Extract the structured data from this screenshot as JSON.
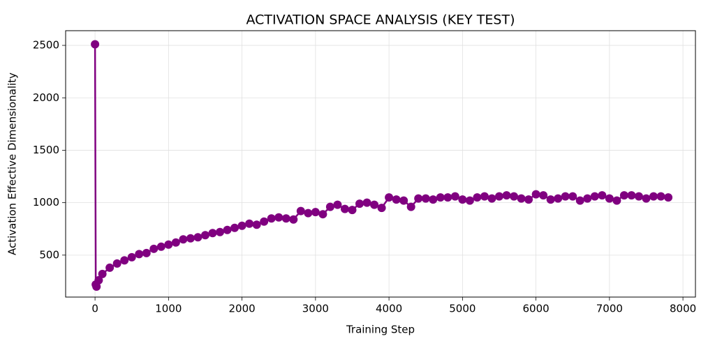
{
  "chart_data": {
    "type": "line",
    "title": "ACTIVATION SPACE ANALYSIS (KEY TEST)",
    "x_label": "Training Step",
    "y_label": "Activation Effective Dimensionality",
    "x": [
      0,
      10,
      20,
      50,
      100,
      200,
      300,
      400,
      500,
      600,
      700,
      800,
      900,
      1000,
      1100,
      1200,
      1300,
      1400,
      1500,
      1600,
      1700,
      1800,
      1900,
      2000,
      2100,
      2200,
      2300,
      2400,
      2500,
      2600,
      2700,
      2800,
      2900,
      3000,
      3100,
      3200,
      3300,
      3400,
      3500,
      3600,
      3700,
      3800,
      3900,
      4000,
      4100,
      4200,
      4300,
      4400,
      4500,
      4600,
      4700,
      4800,
      4900,
      5000,
      5100,
      5200,
      5300,
      5400,
      5500,
      5600,
      5700,
      5800,
      5900,
      6000,
      6100,
      6200,
      6300,
      6400,
      6500,
      6600,
      6700,
      6800,
      6900,
      7000,
      7100,
      7200,
      7300,
      7400,
      7500,
      7600,
      7700,
      7800
    ],
    "series": [
      {
        "name": "Activation Effective Dimensionality",
        "color": "#800080",
        "values": [
          2510,
          220,
          200,
          260,
          320,
          380,
          420,
          450,
          480,
          510,
          520,
          560,
          580,
          600,
          620,
          650,
          660,
          670,
          690,
          710,
          720,
          740,
          760,
          780,
          800,
          790,
          820,
          850,
          860,
          850,
          840,
          920,
          900,
          910,
          890,
          960,
          980,
          940,
          930,
          990,
          1000,
          980,
          950,
          1050,
          1030,
          1020,
          960,
          1040,
          1040,
          1030,
          1050,
          1050,
          1060,
          1030,
          1020,
          1050,
          1060,
          1040,
          1060,
          1070,
          1060,
          1040,
          1030,
          1080,
          1070,
          1030,
          1040,
          1060,
          1060,
          1020,
          1040,
          1060,
          1070,
          1040,
          1020,
          1070,
          1070,
          1060,
          1040,
          1060,
          1060,
          1050
        ]
      }
    ],
    "xlim": [
      -400,
      8170
    ],
    "ylim": [
      100,
      2640
    ],
    "xticks": [
      0,
      1000,
      2000,
      3000,
      4000,
      5000,
      6000,
      7000,
      8000
    ],
    "yticks": [
      500,
      1000,
      1500,
      2000,
      2500
    ],
    "grid": true
  }
}
